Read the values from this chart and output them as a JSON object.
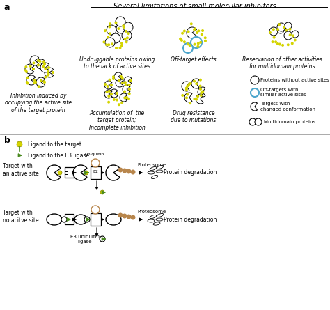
{
  "title_a": "Several limitations of small molecular inhibitors",
  "section_a_label": "a",
  "section_b_label": "b",
  "yg": "#d4d400",
  "bc": "black",
  "wc": "white",
  "blue": "#4da6cc",
  "brown": "#b8864c",
  "dgreen": "#4a8a20",
  "caption1": "Inhibition induced by\noccupying the active site\nof the target protein",
  "caption2": "Undruggable proteins owing\nto the lack of active sites",
  "caption3": "Off-target effects",
  "caption4": "Reservation of other activities\nfor multidomain proteins",
  "caption5": "Accumulation of  the\ntarget protein;\nIncomplete inhibition",
  "caption6": "Drug resistance\ndue to mutations",
  "legend1": "Proteins without active sites",
  "legend2": "Off-targets with\nsimilar active sites",
  "legend3": "Targets with\nchanged conformation",
  "legend4": "Multidomain proteins",
  "b_legend1": "Ligand to the target",
  "b_legend2": "Ligand to the E3 ligase",
  "b_row1_label": "Target with\nan active site",
  "b_row2_label": "Target with\nno acitve site",
  "b_label_e3": "E3 ubiquitin\nligase",
  "b_label_ubiquitin": "Ubiquitin",
  "b_label_e2": "E2",
  "b_label_proteosome1": "Proteosome",
  "b_label_proteosome2": "Proteosome",
  "b_label_protein_deg": "Protein degradation",
  "fs": 7,
  "fsc": 5.5
}
